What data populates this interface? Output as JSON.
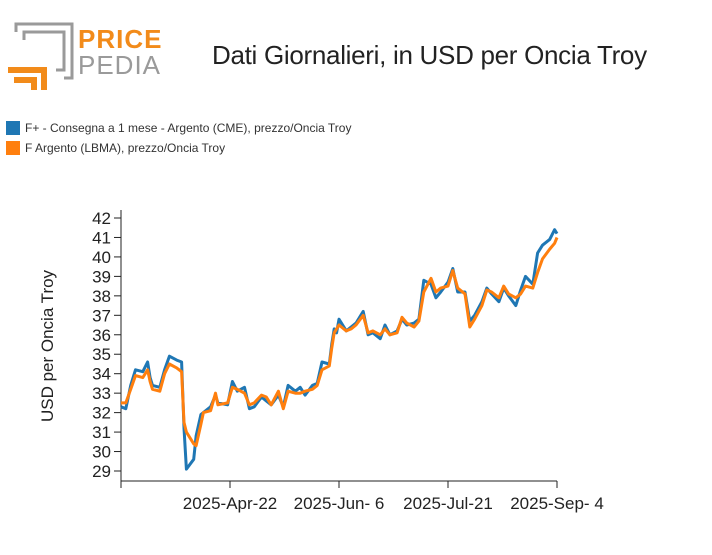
{
  "logo": {
    "word_top": "PRICE",
    "word_bottom": "PEDIA",
    "color_orange": "#f28b1a",
    "color_gray": "#9a9a9a"
  },
  "chart_data": {
    "type": "line",
    "title": "Dati Giornalieri, in USD per Oncia Troy",
    "xlabel": "",
    "ylabel": "USD per Oncia Troy",
    "ylim": [
      29,
      42
    ],
    "yticks": [
      29,
      30,
      31,
      32,
      33,
      34,
      35,
      36,
      37,
      38,
      39,
      40,
      41,
      42
    ],
    "xticks": [
      "2025-Apr-22",
      "2025-Jun- 6",
      "2025-Jul-21",
      "2025-Sep- 4"
    ],
    "xlim": [
      "2025-03-08",
      "2025-09-04"
    ],
    "grid": false,
    "legend_placement": "top-left",
    "series": [
      {
        "name": "F+ - Consegna a 1 mese - Argento (CME), prezzo/Oncia Troy",
        "color": "#1f77b4",
        "x": [
          "2025-03-08",
          "2025-03-10",
          "2025-03-12",
          "2025-03-14",
          "2025-03-17",
          "2025-03-19",
          "2025-03-20",
          "2025-03-21",
          "2025-03-24",
          "2025-03-26",
          "2025-03-28",
          "2025-03-31",
          "2025-04-02",
          "2025-04-03",
          "2025-04-04",
          "2025-04-07",
          "2025-04-08",
          "2025-04-10",
          "2025-04-11",
          "2025-04-14",
          "2025-04-16",
          "2025-04-17",
          "2025-04-21",
          "2025-04-23",
          "2025-04-25",
          "2025-04-28",
          "2025-04-30",
          "2025-05-02",
          "2025-05-05",
          "2025-05-07",
          "2025-05-09",
          "2025-05-12",
          "2025-05-14",
          "2025-05-16",
          "2025-05-19",
          "2025-05-21",
          "2025-05-23",
          "2025-05-26",
          "2025-05-28",
          "2025-05-30",
          "2025-06-02",
          "2025-06-03",
          "2025-06-04",
          "2025-06-05",
          "2025-06-06",
          "2025-06-09",
          "2025-06-11",
          "2025-06-13",
          "2025-06-16",
          "2025-06-18",
          "2025-06-20",
          "2025-06-23",
          "2025-06-25",
          "2025-06-27",
          "2025-06-30",
          "2025-07-02",
          "2025-07-04",
          "2025-07-07",
          "2025-07-09",
          "2025-07-11",
          "2025-07-14",
          "2025-07-16",
          "2025-07-18",
          "2025-07-21",
          "2025-07-23",
          "2025-07-25",
          "2025-07-28",
          "2025-07-30",
          "2025-08-01",
          "2025-08-04",
          "2025-08-06",
          "2025-08-08",
          "2025-08-11",
          "2025-08-13",
          "2025-08-15",
          "2025-08-18",
          "2025-08-20",
          "2025-08-22",
          "2025-08-25",
          "2025-08-27",
          "2025-08-29",
          "2025-09-01",
          "2025-09-03",
          "2025-09-04"
        ],
        "values": [
          32.3,
          32.2,
          33.4,
          34.2,
          34.1,
          34.6,
          33.8,
          33.4,
          33.3,
          34.2,
          34.9,
          34.7,
          34.6,
          31.2,
          29.1,
          29.6,
          30.8,
          31.9,
          32.0,
          32.3,
          32.9,
          32.5,
          32.4,
          33.6,
          33.1,
          33.3,
          32.2,
          32.3,
          32.8,
          32.6,
          32.4,
          32.9,
          32.3,
          33.4,
          33.1,
          33.3,
          32.9,
          33.4,
          33.5,
          34.6,
          34.5,
          35.5,
          36.3,
          36.1,
          36.8,
          36.2,
          36.4,
          36.6,
          37.2,
          36.0,
          36.1,
          35.8,
          36.5,
          36.0,
          36.2,
          36.8,
          36.5,
          36.6,
          36.8,
          38.8,
          38.6,
          37.9,
          38.2,
          38.7,
          39.4,
          38.2,
          38.2,
          36.7,
          37.0,
          37.7,
          38.4,
          38.1,
          37.7,
          38.4,
          38.0,
          37.5,
          38.3,
          39.0,
          38.6,
          40.2,
          40.6,
          40.9,
          41.4,
          41.2
        ]
      },
      {
        "name": "F Argento (LBMA), prezzo/Oncia Troy",
        "color": "#ff7f0e",
        "x": [
          "2025-03-08",
          "2025-03-10",
          "2025-03-12",
          "2025-03-14",
          "2025-03-17",
          "2025-03-19",
          "2025-03-20",
          "2025-03-21",
          "2025-03-24",
          "2025-03-26",
          "2025-03-28",
          "2025-03-31",
          "2025-04-02",
          "2025-04-03",
          "2025-04-04",
          "2025-04-07",
          "2025-04-08",
          "2025-04-10",
          "2025-04-11",
          "2025-04-14",
          "2025-04-16",
          "2025-04-17",
          "2025-04-21",
          "2025-04-23",
          "2025-04-25",
          "2025-04-28",
          "2025-04-30",
          "2025-05-02",
          "2025-05-05",
          "2025-05-07",
          "2025-05-09",
          "2025-05-12",
          "2025-05-14",
          "2025-05-16",
          "2025-05-19",
          "2025-05-21",
          "2025-05-23",
          "2025-05-26",
          "2025-05-28",
          "2025-05-30",
          "2025-06-02",
          "2025-06-03",
          "2025-06-04",
          "2025-06-05",
          "2025-06-06",
          "2025-06-09",
          "2025-06-11",
          "2025-06-13",
          "2025-06-16",
          "2025-06-18",
          "2025-06-20",
          "2025-06-23",
          "2025-06-25",
          "2025-06-27",
          "2025-06-30",
          "2025-07-02",
          "2025-07-04",
          "2025-07-07",
          "2025-07-09",
          "2025-07-11",
          "2025-07-14",
          "2025-07-16",
          "2025-07-18",
          "2025-07-21",
          "2025-07-23",
          "2025-07-25",
          "2025-07-28",
          "2025-07-30",
          "2025-08-01",
          "2025-08-04",
          "2025-08-06",
          "2025-08-08",
          "2025-08-11",
          "2025-08-13",
          "2025-08-15",
          "2025-08-18",
          "2025-08-20",
          "2025-08-22",
          "2025-08-25",
          "2025-08-27",
          "2025-08-29",
          "2025-09-01",
          "2025-09-03",
          "2025-09-04"
        ],
        "values": [
          32.5,
          32.5,
          33.2,
          33.9,
          33.8,
          34.2,
          33.6,
          33.2,
          33.1,
          34.0,
          34.5,
          34.3,
          34.1,
          31.5,
          31.0,
          30.4,
          30.3,
          31.4,
          32.0,
          32.1,
          33.0,
          32.4,
          32.5,
          33.3,
          33.2,
          33.0,
          32.4,
          32.5,
          32.9,
          32.8,
          32.4,
          33.1,
          32.2,
          33.1,
          33.0,
          33.0,
          33.1,
          33.2,
          33.4,
          34.2,
          34.4,
          35.3,
          36.1,
          36.3,
          36.5,
          36.2,
          36.3,
          36.5,
          37.0,
          36.1,
          36.2,
          36.0,
          36.3,
          36.0,
          36.1,
          36.9,
          36.6,
          36.4,
          36.7,
          38.2,
          38.9,
          38.2,
          38.4,
          38.5,
          39.3,
          38.4,
          38.1,
          36.4,
          36.8,
          37.5,
          38.3,
          38.2,
          37.9,
          38.5,
          38.1,
          37.9,
          38.1,
          38.5,
          38.4,
          39.2,
          39.9,
          40.4,
          40.7,
          41.0
        ]
      }
    ]
  }
}
